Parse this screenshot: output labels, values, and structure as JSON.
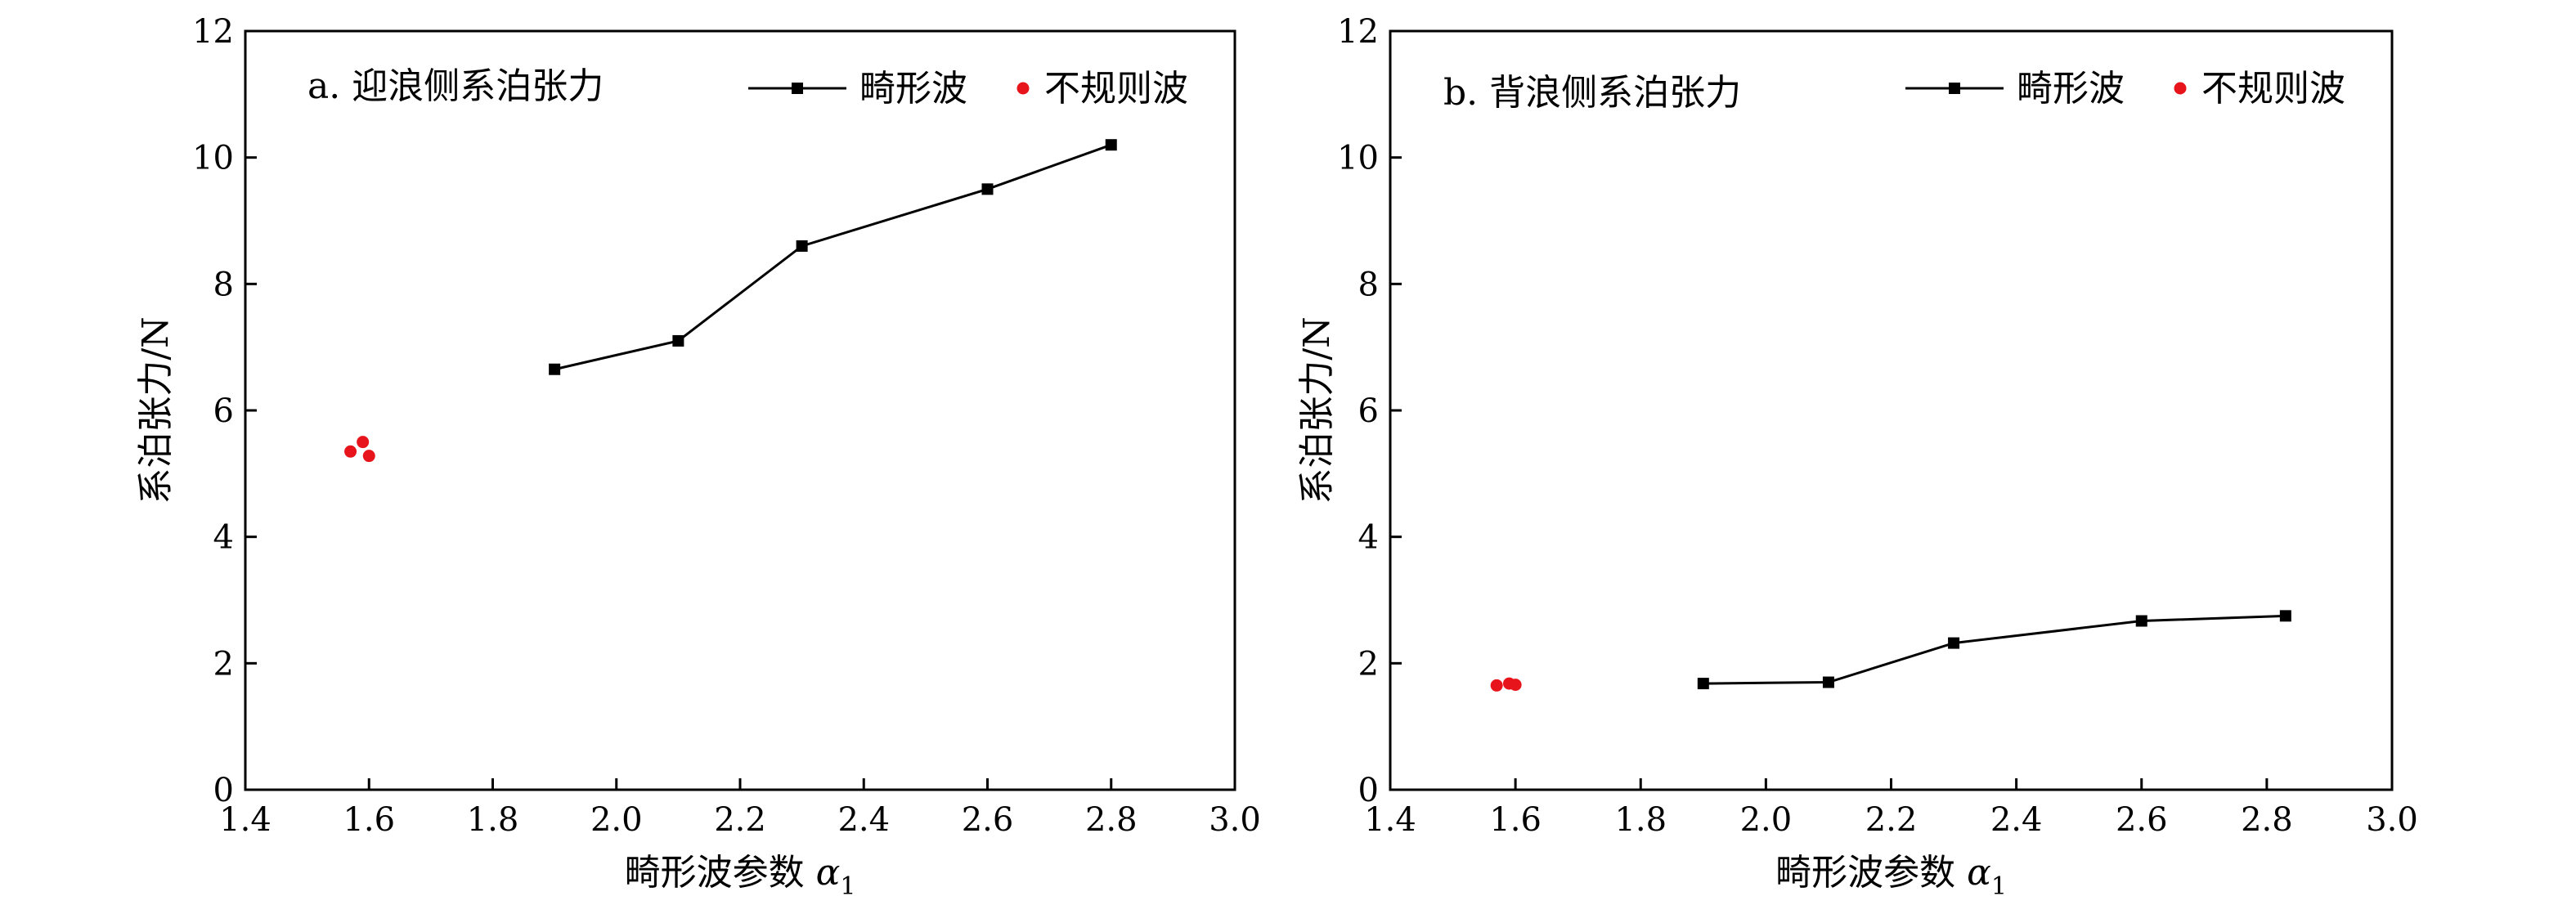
{
  "chart_data": [
    {
      "type": "line",
      "title": "a. 迎浪侧系泊张力",
      "xlabel_main": "畸形波参数 ",
      "xlabel_symbol": "α",
      "xlabel_subscript": "1",
      "ylabel": "系泊张力/N",
      "xlim": [
        1.4,
        3.0
      ],
      "ylim": [
        0,
        12
      ],
      "xticks": [
        "1.4",
        "1.6",
        "1.8",
        "2.0",
        "2.2",
        "2.4",
        "2.6",
        "2.8",
        "3.0"
      ],
      "yticks": [
        "0",
        "2",
        "4",
        "6",
        "8",
        "10",
        "12"
      ],
      "grid": false,
      "legend_position": "top-right",
      "series": [
        {
          "name": "畸形波",
          "kind": "line-square",
          "color": "#000000",
          "x": [
            1.9,
            2.1,
            2.3,
            2.6,
            2.8
          ],
          "y": [
            6.65,
            7.1,
            8.6,
            9.5,
            10.2
          ]
        },
        {
          "name": "不规则波",
          "kind": "scatter",
          "color": "#e8141b",
          "x": [
            1.57,
            1.59,
            1.6
          ],
          "y": [
            5.35,
            5.5,
            5.28
          ]
        }
      ]
    },
    {
      "type": "line",
      "title": "b. 背浪侧系泊张力",
      "xlabel_main": "畸形波参数 ",
      "xlabel_symbol": "α",
      "xlabel_subscript": "1",
      "ylabel": "系泊张力/N",
      "xlim": [
        1.4,
        3.0
      ],
      "ylim": [
        0,
        12
      ],
      "xticks": [
        "1.4",
        "1.6",
        "1.8",
        "2.0",
        "2.2",
        "2.4",
        "2.6",
        "2.8",
        "3.0"
      ],
      "yticks": [
        "0",
        "2",
        "4",
        "6",
        "8",
        "10",
        "12"
      ],
      "grid": false,
      "legend_position": "top-right",
      "series": [
        {
          "name": "畸形波",
          "kind": "line-square",
          "color": "#000000",
          "x": [
            1.9,
            2.1,
            2.3,
            2.6,
            2.83
          ],
          "y": [
            1.68,
            1.7,
            2.32,
            2.67,
            2.75
          ]
        },
        {
          "name": "不规则波",
          "kind": "scatter",
          "color": "#e8141b",
          "x": [
            1.57,
            1.59,
            1.6
          ],
          "y": [
            1.65,
            1.68,
            1.66
          ]
        }
      ]
    }
  ]
}
